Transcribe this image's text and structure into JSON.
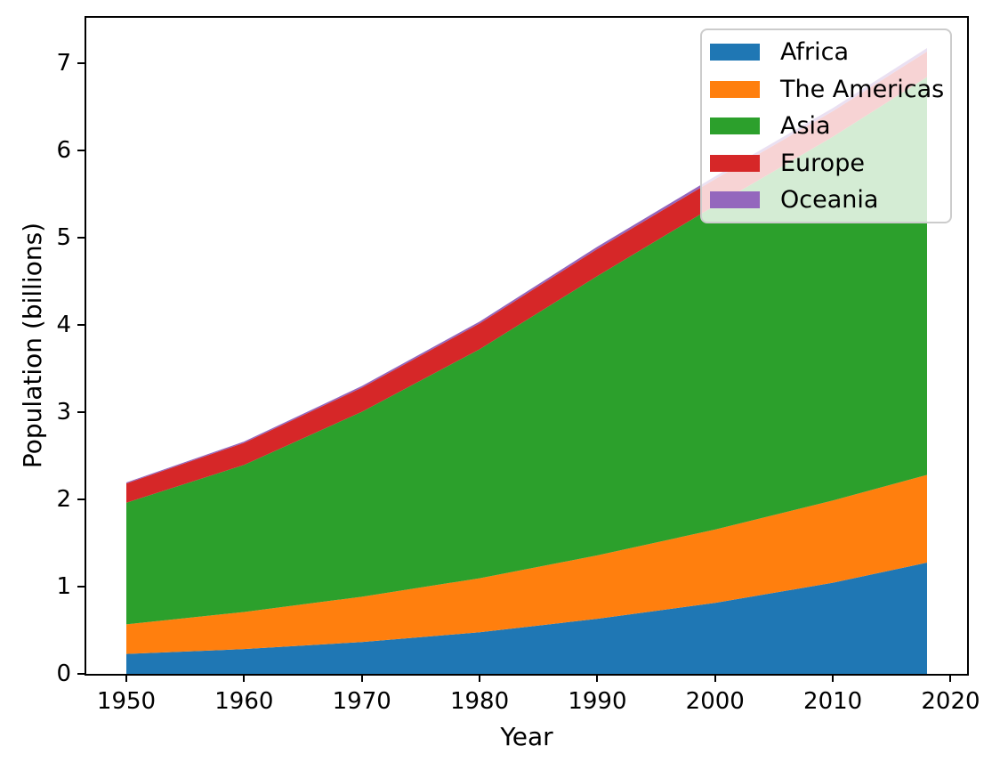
{
  "figure": {
    "background": "#ffffff",
    "text_color": "#000000",
    "spine_color": "#000000"
  },
  "chart_data": {
    "type": "area",
    "stacked": true,
    "title": "",
    "xlabel": "Year",
    "ylabel": "Population (billions)",
    "x": [
      1950,
      1960,
      1970,
      1980,
      1990,
      2000,
      2010,
      2018
    ],
    "series": [
      {
        "name": "Africa",
        "color": "#1f77b4",
        "values": [
          0.228,
          0.284,
          0.365,
          0.477,
          0.631,
          0.814,
          1.044,
          1.275
        ]
      },
      {
        "name": "The Americas",
        "color": "#ff7f0e",
        "values": [
          0.34,
          0.425,
          0.519,
          0.619,
          0.727,
          0.84,
          0.943,
          1.006
        ]
      },
      {
        "name": "Asia",
        "color": "#2ca02c",
        "values": [
          1.394,
          1.686,
          2.12,
          2.625,
          3.202,
          3.714,
          4.169,
          4.56
        ]
      },
      {
        "name": "Europe",
        "color": "#d62728",
        "values": [
          0.22,
          0.253,
          0.276,
          0.295,
          0.31,
          0.303,
          0.294,
          0.293
        ]
      },
      {
        "name": "Oceania",
        "color": "#9467bd",
        "values": [
          0.012,
          0.015,
          0.019,
          0.022,
          0.026,
          0.031,
          0.036,
          0.039
        ]
      }
    ],
    "totals": [
      2.194,
      2.663,
      3.299,
      4.038,
      4.896,
      5.702,
      6.486,
      7.173
    ],
    "xlim": [
      1946.6,
      2021.4
    ],
    "ylim": [
      0,
      7.52
    ],
    "xticks": [
      1950,
      1960,
      1970,
      1980,
      1990,
      2000,
      2010,
      2020
    ],
    "yticks": [
      0,
      1,
      2,
      3,
      4,
      5,
      6,
      7
    ],
    "grid": false,
    "legend": {
      "location": "upper right",
      "labels": [
        "Africa",
        "The Americas",
        "Asia",
        "Europe",
        "Oceania"
      ]
    }
  }
}
